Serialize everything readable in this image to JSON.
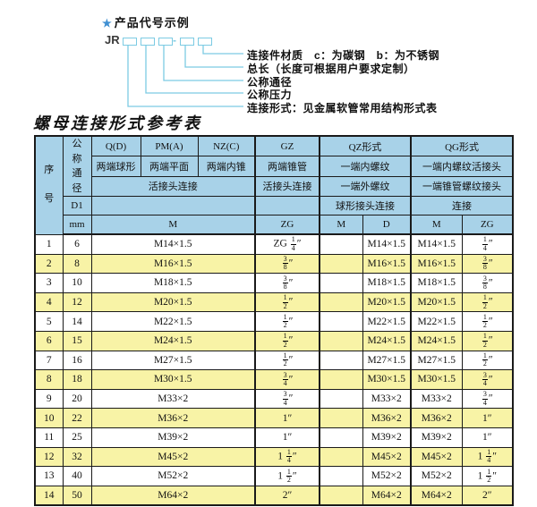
{
  "diagram": {
    "star_icon": "★",
    "title": "产品代号示例",
    "code_prefix": "JR",
    "dash": "-",
    "labels": [
      "连接件材质　c：为碳钢　b：为不锈钢",
      "总长（长度可根据用户要求定制）",
      "公称通径",
      "公称压力",
      "连接形式：见金属软管常用结构形式表"
    ]
  },
  "table": {
    "title": "螺母连接形式参考表",
    "header": {
      "col_seq": "序号",
      "col_dn": "公称通径",
      "d1": "D1",
      "mm": "mm",
      "groups": [
        "Q(D)",
        "PM(A)",
        "NZ(C)",
        "GZ",
        "QZ形式",
        "QG形式"
      ],
      "row2": [
        "两端球形",
        "两端平面",
        "两端内锥",
        "两端锥管",
        "一端内螺纹",
        "一端内螺纹活接头"
      ],
      "row3": [
        "活接头连接",
        "活接头连接",
        "一端外螺纹",
        "一端锥管螺纹接头"
      ],
      "row4": [
        "球形接头连接",
        "连接"
      ],
      "row5": [
        "M",
        "ZG",
        "M",
        "D",
        "M",
        "ZG"
      ]
    },
    "rows": [
      {
        "seq": "1",
        "dn": "6",
        "m": "M14×1.5",
        "gz": "ZG 1/4″",
        "qz_m": "",
        "qz_d": "M14×1.5",
        "qg_m": "M14×1.5",
        "qg_zg": "1/4″"
      },
      {
        "seq": "2",
        "dn": "8",
        "m": "M16×1.5",
        "gz": "3/8″",
        "qz_m": "",
        "qz_d": "M16×1.5",
        "qg_m": "M16×1.5",
        "qg_zg": "3/8″"
      },
      {
        "seq": "3",
        "dn": "10",
        "m": "M18×1.5",
        "gz": "3/8″",
        "qz_m": "",
        "qz_d": "M18×1.5",
        "qg_m": "M18×1.5",
        "qg_zg": "3/8″"
      },
      {
        "seq": "4",
        "dn": "12",
        "m": "M20×1.5",
        "gz": "1/2″",
        "qz_m": "",
        "qz_d": "M20×1.5",
        "qg_m": "M20×1.5",
        "qg_zg": "1/2″"
      },
      {
        "seq": "5",
        "dn": "14",
        "m": "M22×1.5",
        "gz": "1/2″",
        "qz_m": "",
        "qz_d": "M22×1.5",
        "qg_m": "M22×1.5",
        "qg_zg": "1/2″"
      },
      {
        "seq": "6",
        "dn": "15",
        "m": "M24×1.5",
        "gz": "1/2″",
        "qz_m": "",
        "qz_d": "M24×1.5",
        "qg_m": "M24×1.5",
        "qg_zg": "1/2″"
      },
      {
        "seq": "7",
        "dn": "16",
        "m": "M27×1.5",
        "gz": "1/2″",
        "qz_m": "",
        "qz_d": "M27×1.5",
        "qg_m": "M27×1.5",
        "qg_zg": "1/2″"
      },
      {
        "seq": "8",
        "dn": "18",
        "m": "M30×1.5",
        "gz": "3/4″",
        "qz_m": "",
        "qz_d": "M30×1.5",
        "qg_m": "M30×1.5",
        "qg_zg": "3/4″"
      },
      {
        "seq": "9",
        "dn": "20",
        "m": "M33×2",
        "gz": "3/4″",
        "qz_m": "",
        "qz_d": "M33×2",
        "qg_m": "M33×2",
        "qg_zg": "3/4″"
      },
      {
        "seq": "10",
        "dn": "22",
        "m": "M36×2",
        "gz": "1″",
        "qz_m": "",
        "qz_d": "M36×2",
        "qg_m": "M36×2",
        "qg_zg": "1″"
      },
      {
        "seq": "11",
        "dn": "25",
        "m": "M39×2",
        "gz": "1″",
        "qz_m": "",
        "qz_d": "M39×2",
        "qg_m": "M39×2",
        "qg_zg": "1″"
      },
      {
        "seq": "12",
        "dn": "32",
        "m": "M45×2",
        "gz": "1 1/4″",
        "qz_m": "",
        "qz_d": "M45×2",
        "qg_m": "M45×2",
        "qg_zg": "1 1/4″"
      },
      {
        "seq": "13",
        "dn": "40",
        "m": "M52×2",
        "gz": "1 1/2″",
        "qz_m": "",
        "qz_d": "M52×2",
        "qg_m": "M52×2",
        "qg_zg": "1 1/2″"
      },
      {
        "seq": "14",
        "dn": "50",
        "m": "M64×2",
        "gz": "2″",
        "qz_m": "",
        "qz_d": "M64×2",
        "qg_m": "M64×2",
        "qg_zg": "2″"
      }
    ]
  },
  "colors": {
    "header_bg": "#a8d2e8",
    "row_alt_bg": "#f8f3a6",
    "diagram_line": "#7ccbe3",
    "star_blue": "#3f8fd2",
    "border": "#1a1a1a"
  }
}
